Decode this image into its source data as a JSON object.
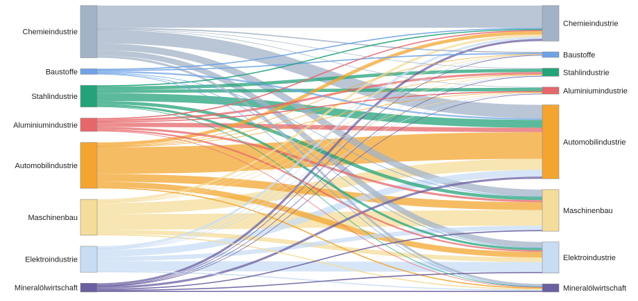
{
  "chart_data": {
    "type": "sankey",
    "title": "",
    "units": "",
    "left_nodes": [
      {
        "id": "L_chemie",
        "name": "Chemieindustrie",
        "color": "#a3b3c7"
      },
      {
        "id": "L_bau",
        "name": "Baustoffe",
        "color": "#6fa3e6"
      },
      {
        "id": "L_stahl",
        "name": "Stahlindustrie",
        "color": "#24a37a"
      },
      {
        "id": "L_alu",
        "name": "Aluminiumindustrie",
        "color": "#e6676a"
      },
      {
        "id": "L_auto",
        "name": "Automobilindustrie",
        "color": "#f3a530"
      },
      {
        "id": "L_masch",
        "name": "Maschinenbau",
        "color": "#f4dc9a"
      },
      {
        "id": "L_elektro",
        "name": "Elektroindustrie",
        "color": "#c8dcf4"
      },
      {
        "id": "L_mineral",
        "name": "Mineralölwirtschaft",
        "color": "#6b5fa0"
      }
    ],
    "right_nodes": [
      {
        "id": "R_chemie",
        "name": "Chemieindustrie",
        "color": "#a3b3c7"
      },
      {
        "id": "R_bau",
        "name": "Baustoffe",
        "color": "#6fa3e6"
      },
      {
        "id": "R_stahl",
        "name": "Stahlindustrie",
        "color": "#24a37a"
      },
      {
        "id": "R_alu",
        "name": "Aluminiumindustrie",
        "color": "#e6676a"
      },
      {
        "id": "R_auto",
        "name": "Automobilindustrie",
        "color": "#f3a530"
      },
      {
        "id": "R_masch",
        "name": "Maschinenbau",
        "color": "#f4dc9a"
      },
      {
        "id": "R_elektro",
        "name": "Elektroindustrie",
        "color": "#c8dcf4"
      },
      {
        "id": "R_mineral",
        "name": "Mineralölwirtschaft",
        "color": "#6b5fa0"
      }
    ],
    "links": [
      {
        "source": "L_chemie",
        "target": "R_chemie",
        "value": 20
      },
      {
        "source": "L_chemie",
        "target": "R_auto",
        "value": 12
      },
      {
        "source": "L_chemie",
        "target": "R_masch",
        "value": 6
      },
      {
        "source": "L_chemie",
        "target": "R_elektro",
        "value": 5
      },
      {
        "source": "L_chemie",
        "target": "R_mineral",
        "value": 2
      },
      {
        "source": "L_chemie",
        "target": "R_bau",
        "value": 1
      },
      {
        "source": "L_chemie",
        "target": "R_stahl",
        "value": 0.5
      },
      {
        "source": "L_chemie",
        "target": "R_alu",
        "value": 0.5
      },
      {
        "source": "L_bau",
        "target": "R_chemie",
        "value": 1
      },
      {
        "source": "L_bau",
        "target": "R_bau",
        "value": 1
      },
      {
        "source": "L_bau",
        "target": "R_auto",
        "value": 1.5
      },
      {
        "source": "L_bau",
        "target": "R_masch",
        "value": 0.5
      },
      {
        "source": "L_bau",
        "target": "R_elektro",
        "value": 0.5
      },
      {
        "source": "L_bau",
        "target": "R_mineral",
        "value": 0.3
      },
      {
        "source": "L_stahl",
        "target": "R_chemie",
        "value": 1
      },
      {
        "source": "L_stahl",
        "target": "R_stahl",
        "value": 3
      },
      {
        "source": "L_stahl",
        "target": "R_alu",
        "value": 3
      },
      {
        "source": "L_stahl",
        "target": "R_auto",
        "value": 7
      },
      {
        "source": "L_stahl",
        "target": "R_masch",
        "value": 3
      },
      {
        "source": "L_stahl",
        "target": "R_elektro",
        "value": 2
      },
      {
        "source": "L_stahl",
        "target": "R_mineral",
        "value": 0.5
      },
      {
        "source": "L_alu",
        "target": "R_chemie",
        "value": 1
      },
      {
        "source": "L_alu",
        "target": "R_stahl",
        "value": 2
      },
      {
        "source": "L_alu",
        "target": "R_alu",
        "value": 1
      },
      {
        "source": "L_alu",
        "target": "R_auto",
        "value": 4
      },
      {
        "source": "L_alu",
        "target": "R_masch",
        "value": 2
      },
      {
        "source": "L_alu",
        "target": "R_elektro",
        "value": 1.5
      },
      {
        "source": "L_alu",
        "target": "R_mineral",
        "value": 0.5
      },
      {
        "source": "L_auto",
        "target": "R_chemie",
        "value": 3
      },
      {
        "source": "L_auto",
        "target": "R_bau",
        "value": 0.3
      },
      {
        "source": "L_auto",
        "target": "R_stahl",
        "value": 0.5
      },
      {
        "source": "L_auto",
        "target": "R_alu",
        "value": 0.5
      },
      {
        "source": "L_auto",
        "target": "R_auto",
        "value": 24
      },
      {
        "source": "L_auto",
        "target": "R_masch",
        "value": 7
      },
      {
        "source": "L_auto",
        "target": "R_elektro",
        "value": 5
      },
      {
        "source": "L_auto",
        "target": "R_mineral",
        "value": 1
      },
      {
        "source": "L_masch",
        "target": "R_chemie",
        "value": 2
      },
      {
        "source": "L_masch",
        "target": "R_bau",
        "value": 0.3
      },
      {
        "source": "L_masch",
        "target": "R_stahl",
        "value": 0.5
      },
      {
        "source": "L_masch",
        "target": "R_alu",
        "value": 0.5
      },
      {
        "source": "L_masch",
        "target": "R_auto",
        "value": 10
      },
      {
        "source": "L_masch",
        "target": "R_masch",
        "value": 14
      },
      {
        "source": "L_masch",
        "target": "R_elektro",
        "value": 4
      },
      {
        "source": "L_masch",
        "target": "R_mineral",
        "value": 1
      },
      {
        "source": "L_elektro",
        "target": "R_chemie",
        "value": 2
      },
      {
        "source": "L_elektro",
        "target": "R_bau",
        "value": 0.3
      },
      {
        "source": "L_elektro",
        "target": "R_stahl",
        "value": 0.5
      },
      {
        "source": "L_elektro",
        "target": "R_alu",
        "value": 0.5
      },
      {
        "source": "L_elektro",
        "target": "R_auto",
        "value": 6
      },
      {
        "source": "L_elektro",
        "target": "R_masch",
        "value": 4
      },
      {
        "source": "L_elektro",
        "target": "R_elektro",
        "value": 9
      },
      {
        "source": "L_elektro",
        "target": "R_mineral",
        "value": 1
      },
      {
        "source": "L_mineral",
        "target": "R_chemie",
        "value": 2
      },
      {
        "source": "L_mineral",
        "target": "R_bau",
        "value": 0.3
      },
      {
        "source": "L_mineral",
        "target": "R_stahl",
        "value": 0.3
      },
      {
        "source": "L_mineral",
        "target": "R_alu",
        "value": 0.3
      },
      {
        "source": "L_mineral",
        "target": "R_auto",
        "value": 2
      },
      {
        "source": "L_mineral",
        "target": "R_masch",
        "value": 1
      },
      {
        "source": "L_mineral",
        "target": "R_elektro",
        "value": 1
      },
      {
        "source": "L_mineral",
        "target": "R_mineral",
        "value": 1
      }
    ]
  }
}
